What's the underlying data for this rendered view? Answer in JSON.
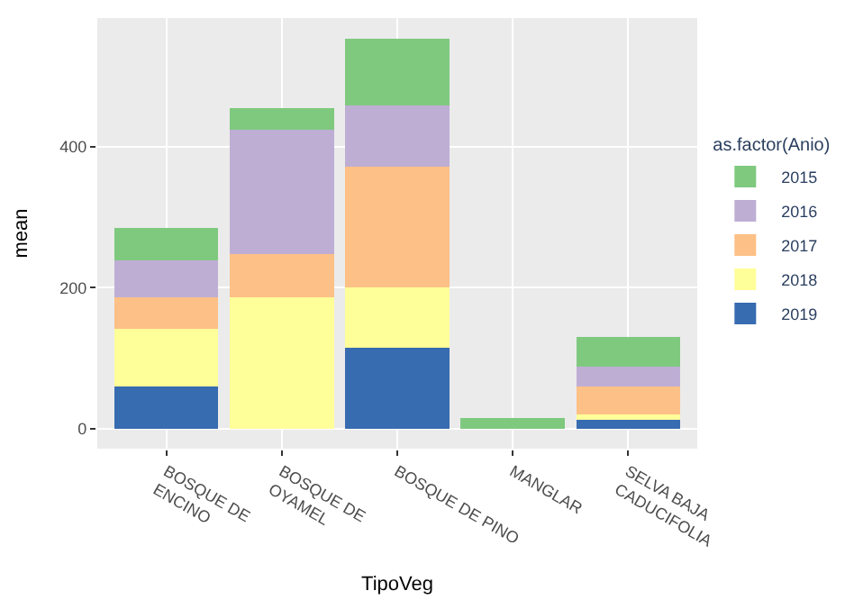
{
  "chart_data": {
    "type": "bar",
    "stacked": true,
    "xlabel": "TipoVeg",
    "ylabel": "mean",
    "legend_title": "as.factor(Anio)",
    "categories": [
      "BOSQUE DE ENCINO",
      "BOSQUE DE OYAMEL",
      "BOSQUE DE PINO",
      "MANGLAR",
      "SELVA BAJA CADUCIFOLIA"
    ],
    "series": [
      {
        "name": "2019",
        "color": "#386cb0",
        "values": [
          60,
          0,
          115,
          0,
          15
        ]
      },
      {
        "name": "2018",
        "color": "#ffff99",
        "values": [
          82,
          187,
          86,
          0,
          5
        ]
      },
      {
        "name": "2017",
        "color": "#fdc086",
        "values": [
          44,
          61,
          170,
          0,
          40
        ]
      },
      {
        "name": "2016",
        "color": "#beaed4",
        "values": [
          53,
          176,
          87,
          0,
          28
        ]
      },
      {
        "name": "2015",
        "color": "#7fc97f",
        "values": [
          46,
          30,
          95,
          16,
          42
        ]
      }
    ],
    "ylim": [
      -28,
      582
    ],
    "yticks": [
      0,
      200,
      400
    ],
    "grid": true,
    "legend": "right"
  }
}
